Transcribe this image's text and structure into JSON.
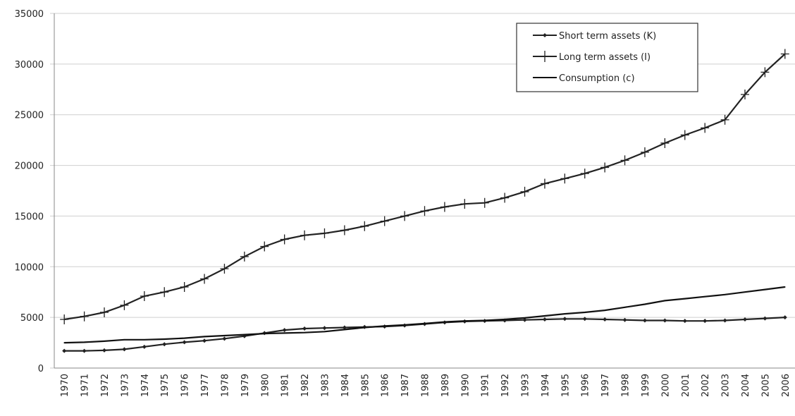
{
  "chart_data": {
    "type": "line",
    "categories": [
      "1970",
      "1971",
      "1972",
      "1973",
      "1974",
      "1975",
      "1976",
      "1977",
      "1978",
      "1979",
      "1980",
      "1981",
      "1982",
      "1983",
      "1984",
      "1985",
      "1986",
      "1987",
      "1988",
      "1989",
      "1990",
      "1991",
      "1992",
      "1993",
      "1994",
      "1995",
      "1996",
      "1997",
      "1998",
      "1999",
      "2000",
      "2001",
      "2002",
      "2003",
      "2004",
      "2005",
      "2006"
    ],
    "series": [
      {
        "name": "Short term assets (K)",
        "color": "#222222",
        "marker": "diamond",
        "values": [
          1700,
          1700,
          1750,
          1850,
          2100,
          2350,
          2550,
          2700,
          2900,
          3150,
          3450,
          3750,
          3900,
          3950,
          4000,
          4050,
          4100,
          4200,
          4350,
          4500,
          4600,
          4650,
          4700,
          4750,
          4800,
          4850,
          4850,
          4800,
          4750,
          4700,
          4700,
          4650,
          4650,
          4700,
          4800,
          4900,
          5000
        ]
      },
      {
        "name": "Long term assets (I)",
        "color": "#222222",
        "marker": "plus",
        "values": [
          4800,
          5100,
          5500,
          6200,
          7100,
          7500,
          8000,
          8800,
          9800,
          11000,
          12000,
          12700,
          13100,
          13300,
          13600,
          14000,
          14500,
          15000,
          15500,
          15900,
          16200,
          16300,
          16800,
          17400,
          18200,
          18700,
          19200,
          19800,
          20500,
          21300,
          22200,
          23000,
          23700,
          24500,
          27000,
          29200,
          31000
        ]
      },
      {
        "name": "Consumption (c)",
        "color": "#111111",
        "marker": "none",
        "values": [
          2500,
          2550,
          2650,
          2800,
          2800,
          2850,
          2950,
          3100,
          3200,
          3300,
          3400,
          3450,
          3500,
          3600,
          3800,
          4000,
          4150,
          4250,
          4400,
          4550,
          4650,
          4700,
          4800,
          4950,
          5150,
          5350,
          5500,
          5700,
          6000,
          6300,
          6650,
          6850,
          7050,
          7250,
          7500,
          7750,
          8000
        ]
      }
    ],
    "ylim": [
      0,
      35000
    ],
    "yticks": [
      0,
      5000,
      10000,
      15000,
      20000,
      25000,
      30000,
      35000
    ],
    "grid": true,
    "legend": "top-right"
  }
}
